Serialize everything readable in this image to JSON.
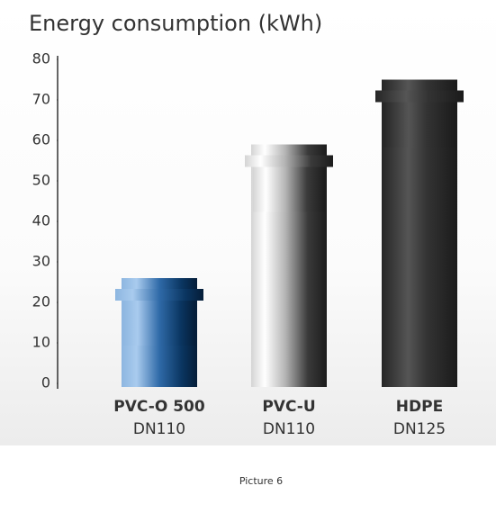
{
  "chart_data": {
    "type": "bar",
    "title": "Energy consumption (kWh)",
    "categories": [
      "PVC-O 500",
      "PVC-U",
      "HDPE"
    ],
    "sublabels": [
      "DN110",
      "DN110",
      "DN125"
    ],
    "values": [
      26,
      59,
      75
    ],
    "ylim": [
      0,
      80
    ],
    "yticks": [
      0,
      10,
      20,
      30,
      40,
      50,
      60,
      70,
      80
    ]
  },
  "caption": "Picture 6"
}
